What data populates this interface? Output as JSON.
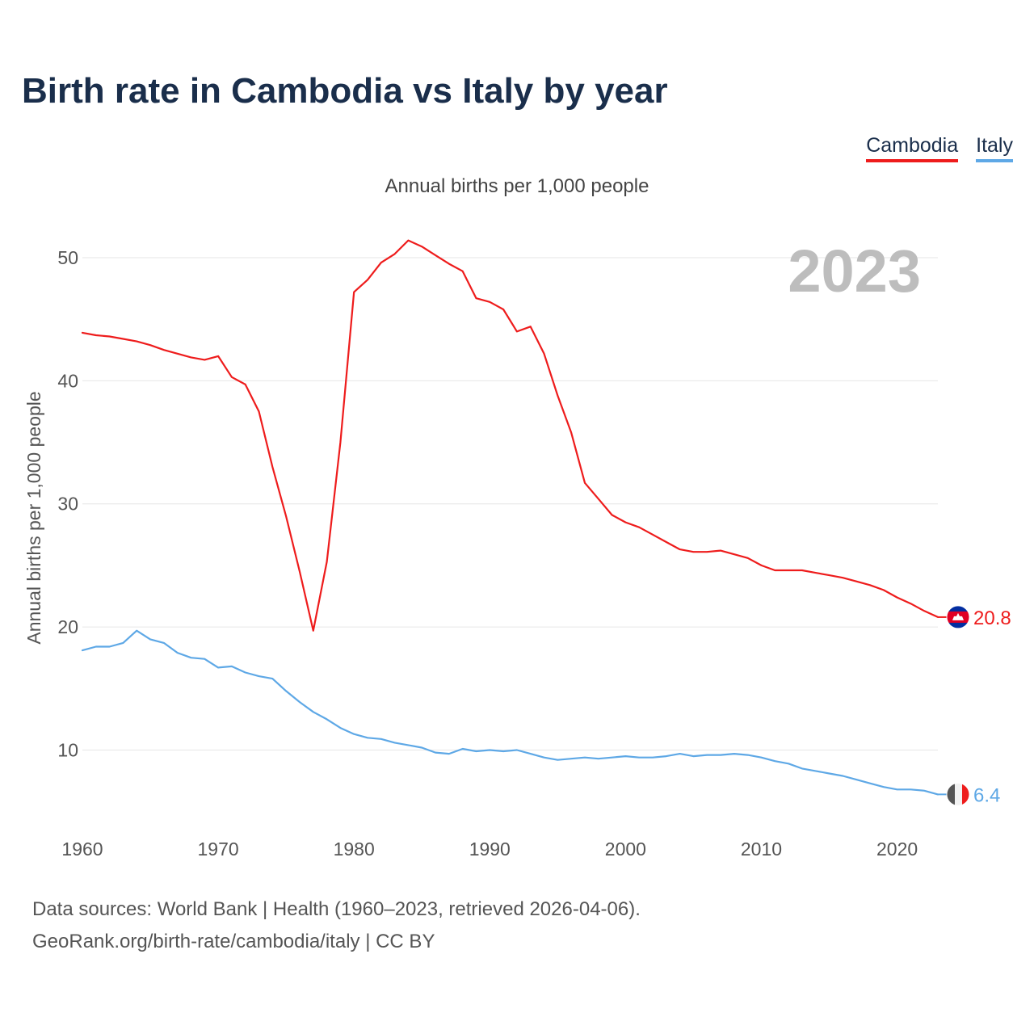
{
  "title": "Birth rate in Cambodia vs Italy by year",
  "subtitle": "Annual births per 1,000 people",
  "legend": {
    "cambodia": "Cambodia",
    "italy": "Italy"
  },
  "source_line1": "Data sources: World Bank | Health (1960–2023, retrieved 2026-04-06).",
  "source_line2": "GeoRank.org/birth-rate/cambodia/italy | CC BY",
  "colors": {
    "cambodia": "#ee1c1c",
    "italy": "#5ea8e6",
    "title": "#1a2e4b",
    "year": "#bdbdbd",
    "grid": "#e6e6e6"
  },
  "chart_data": {
    "type": "line",
    "title": "Birth rate in Cambodia vs Italy by year",
    "ylabel": "Annual births per 1,000 people",
    "xlabel": "",
    "year_label": "2023",
    "xlim": [
      1960,
      2023
    ],
    "ylim": [
      3.8,
      54
    ],
    "x_ticks": [
      1960,
      1970,
      1980,
      1990,
      2000,
      2010,
      2020
    ],
    "y_ticks": [
      10,
      20,
      30,
      40,
      50
    ],
    "grid": true,
    "x": [
      1960,
      1961,
      1962,
      1963,
      1964,
      1965,
      1966,
      1967,
      1968,
      1969,
      1970,
      1971,
      1972,
      1973,
      1974,
      1975,
      1976,
      1977,
      1978,
      1979,
      1980,
      1981,
      1982,
      1983,
      1984,
      1985,
      1986,
      1987,
      1988,
      1989,
      1990,
      1991,
      1992,
      1993,
      1994,
      1995,
      1996,
      1997,
      1998,
      1999,
      2000,
      2001,
      2002,
      2003,
      2004,
      2005,
      2006,
      2007,
      2008,
      2009,
      2010,
      2011,
      2012,
      2013,
      2014,
      2015,
      2016,
      2017,
      2018,
      2019,
      2020,
      2021,
      2022,
      2023
    ],
    "series": [
      {
        "name": "Cambodia",
        "color": "#ee1c1c",
        "end_label": "20.8",
        "values": [
          43.9,
          43.7,
          43.6,
          43.4,
          43.2,
          42.9,
          42.5,
          42.2,
          41.9,
          41.7,
          42.0,
          40.3,
          39.7,
          37.5,
          33.0,
          29.0,
          24.5,
          19.7,
          25.3,
          35.0,
          47.2,
          48.2,
          49.6,
          50.3,
          51.4,
          50.9,
          50.2,
          49.5,
          48.9,
          46.7,
          46.4,
          45.8,
          44.0,
          44.4,
          42.2,
          38.8,
          35.8,
          31.7,
          30.4,
          29.1,
          28.5,
          28.1,
          27.5,
          26.9,
          26.3,
          26.1,
          26.1,
          26.2,
          25.9,
          25.6,
          25.0,
          24.6,
          24.6,
          24.6,
          24.4,
          24.2,
          24.0,
          23.7,
          23.4,
          23.0,
          22.4,
          21.9,
          21.3,
          20.8
        ]
      },
      {
        "name": "Italy",
        "color": "#5ea8e6",
        "end_label": "6.4",
        "values": [
          18.1,
          18.4,
          18.4,
          18.7,
          19.7,
          19.0,
          18.7,
          17.9,
          17.5,
          17.4,
          16.7,
          16.8,
          16.3,
          16.0,
          15.8,
          14.8,
          13.9,
          13.1,
          12.5,
          11.8,
          11.3,
          11.0,
          10.9,
          10.6,
          10.4,
          10.2,
          9.8,
          9.7,
          10.1,
          9.9,
          10.0,
          9.9,
          10.0,
          9.7,
          9.4,
          9.2,
          9.3,
          9.4,
          9.3,
          9.4,
          9.5,
          9.4,
          9.4,
          9.5,
          9.7,
          9.5,
          9.6,
          9.6,
          9.7,
          9.6,
          9.4,
          9.1,
          8.9,
          8.5,
          8.3,
          8.1,
          7.9,
          7.6,
          7.3,
          7.0,
          6.8,
          6.8,
          6.7,
          6.4
        ]
      }
    ]
  }
}
